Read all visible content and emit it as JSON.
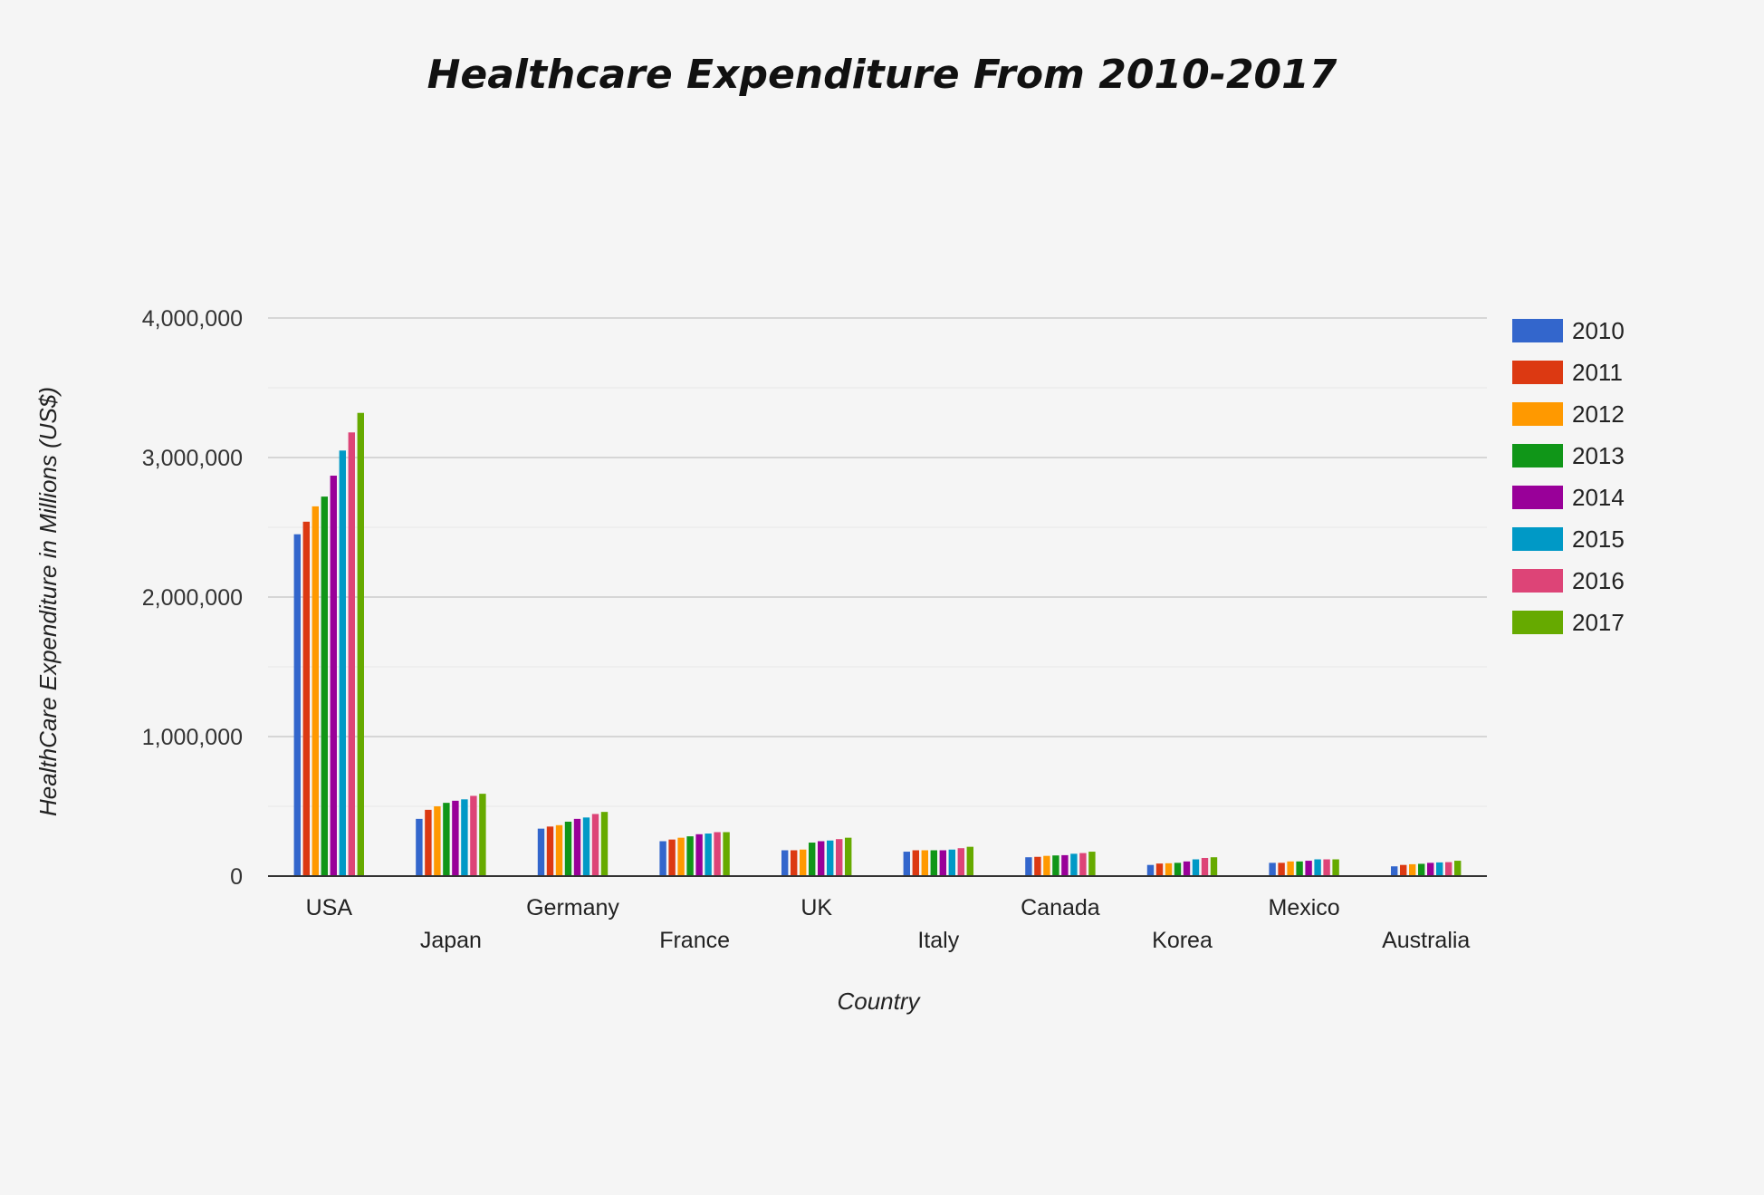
{
  "chart_data": {
    "type": "bar",
    "title": "Healthcare Expenditure From 2010-2017",
    "xlabel": "Country",
    "ylabel": "HealthCare Expenditure in Millions (US$)",
    "ylim": [
      0,
      4000000
    ],
    "yticks": [
      "0",
      "1,000,000",
      "2,000,000",
      "3,000,000",
      "4,000,000"
    ],
    "ytick_values": [
      0,
      1000000,
      2000000,
      3000000,
      4000000
    ],
    "grid": true,
    "legend_position": "right",
    "categories": [
      "USA",
      "Japan",
      "Germany",
      "France",
      "UK",
      "Italy",
      "Canada",
      "Korea",
      "Mexico",
      "Australia"
    ],
    "series": [
      {
        "name": "2010",
        "color": "#3366cc",
        "values": [
          2450000,
          410000,
          340000,
          250000,
          185000,
          175000,
          135000,
          80000,
          95000,
          70000
        ]
      },
      {
        "name": "2011",
        "color": "#dc3912",
        "values": [
          2540000,
          475000,
          355000,
          262000,
          185000,
          185000,
          138000,
          90000,
          95000,
          80000
        ]
      },
      {
        "name": "2012",
        "color": "#ff9900",
        "values": [
          2650000,
          500000,
          365000,
          275000,
          190000,
          185000,
          145000,
          92000,
          105000,
          85000
        ]
      },
      {
        "name": "2013",
        "color": "#109618",
        "values": [
          2720000,
          525000,
          390000,
          285000,
          240000,
          185000,
          148000,
          95000,
          105000,
          88000
        ]
      },
      {
        "name": "2014",
        "color": "#990099",
        "values": [
          2870000,
          540000,
          410000,
          300000,
          250000,
          185000,
          150000,
          105000,
          110000,
          95000
        ]
      },
      {
        "name": "2015",
        "color": "#0099c6",
        "values": [
          3050000,
          550000,
          420000,
          305000,
          255000,
          190000,
          160000,
          120000,
          120000,
          98000
        ]
      },
      {
        "name": "2016",
        "color": "#dd4477",
        "values": [
          3180000,
          575000,
          445000,
          315000,
          265000,
          200000,
          165000,
          130000,
          120000,
          100000
        ]
      },
      {
        "name": "2017",
        "color": "#66aa00",
        "values": [
          3320000,
          590000,
          460000,
          315000,
          275000,
          210000,
          175000,
          135000,
          120000,
          110000
        ]
      }
    ]
  }
}
